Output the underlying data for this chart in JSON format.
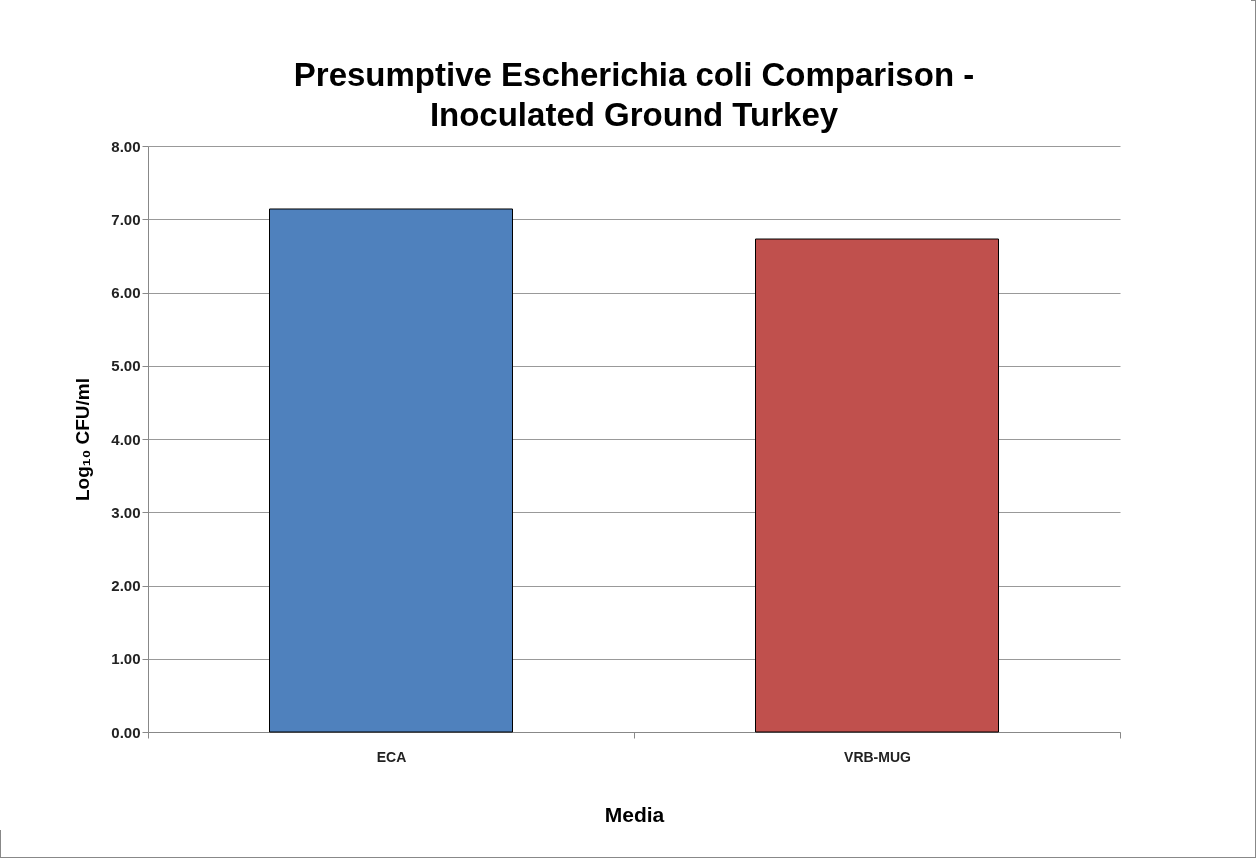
{
  "chart_data": {
    "type": "bar",
    "title": "Presumptive Escherichia coli Comparison - Inoculated Ground Turkey",
    "xlabel": "Media",
    "ylabel": "Log₁₀ CFU/ml",
    "categories": [
      "ECA",
      "VRB-MUG"
    ],
    "values": [
      7.14,
      6.73
    ],
    "colors": [
      "#4f81bd",
      "#c0504d"
    ],
    "ylim": [
      0,
      8
    ],
    "yticks": [
      {
        "value": 0,
        "label": "0.00"
      },
      {
        "value": 1,
        "label": "1.00"
      },
      {
        "value": 2,
        "label": "2.00"
      },
      {
        "value": 3,
        "label": "3.00"
      },
      {
        "value": 4,
        "label": "4.00"
      },
      {
        "value": 5,
        "label": "5.00"
      },
      {
        "value": 6,
        "label": "6.00"
      },
      {
        "value": 7,
        "label": "7.00"
      },
      {
        "value": 8,
        "label": "8.00"
      }
    ],
    "grid": "y"
  }
}
